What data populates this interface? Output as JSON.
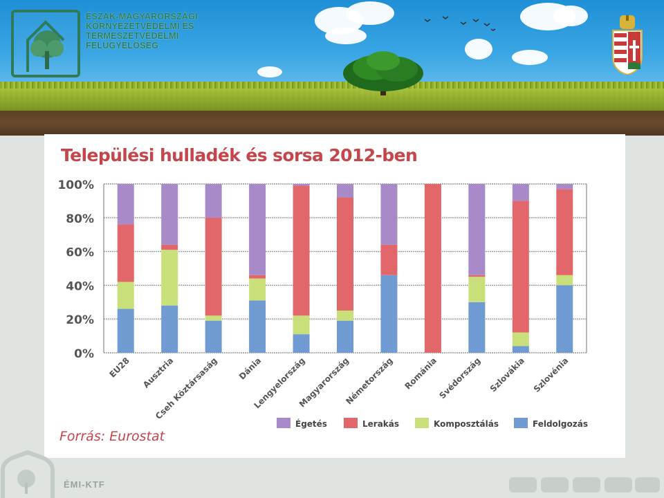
{
  "header": {
    "org_lines": [
      "ÉSZAK-MAGYARORSZÁGI",
      "KÖRNYEZETVÉDELMI ÉS",
      "TERMÉSZETVÉDELMI",
      "FELÜGYELŐSÉG"
    ],
    "logo_icon": "tree-house-logo-icon",
    "crest_icon": "hungarian-coat-of-arms-icon"
  },
  "chart_data": {
    "type": "bar",
    "stacked": true,
    "title": "Települési hulladék és sorsa 2012-ben",
    "source": "Forrás: Eurostat",
    "categories": [
      "EU28",
      "Ausztria",
      "Cseh Köztársaság",
      "Dánia",
      "Lengyelország",
      "Magyarország",
      "Németország",
      "Románia",
      "Svédország",
      "Szlovákia",
      "Szlovénia"
    ],
    "y_ticks": [
      "0%",
      "20%",
      "40%",
      "60%",
      "80%",
      "100%"
    ],
    "ylim": [
      0,
      100
    ],
    "grid": true,
    "legend_position": "bottom-right",
    "series": [
      {
        "name": "Feldolgozás",
        "color": "#6f9bd2",
        "values": [
          26,
          28,
          19,
          31,
          11,
          19,
          46,
          0,
          30,
          4,
          40
        ]
      },
      {
        "name": "Komposztálás",
        "color": "#c9e07a",
        "values": [
          16,
          33,
          3,
          13,
          11,
          6,
          0,
          0,
          15,
          8,
          6
        ]
      },
      {
        "name": "Lerakás",
        "color": "#e2676b",
        "values": [
          34,
          3,
          58,
          2,
          77,
          67,
          18,
          100,
          1,
          78,
          51
        ]
      },
      {
        "name": "Égetés",
        "color": "#a98ac8",
        "values": [
          24,
          36,
          20,
          54,
          1,
          8,
          36,
          0,
          54,
          10,
          3
        ]
      }
    ],
    "legend_order": [
      "Égetés",
      "Lerakás",
      "Komposztálás",
      "Feldolgozás"
    ]
  },
  "footer": {
    "label": "ÉMI-KTF",
    "logo_icon": "tree-house-logo-icon"
  }
}
